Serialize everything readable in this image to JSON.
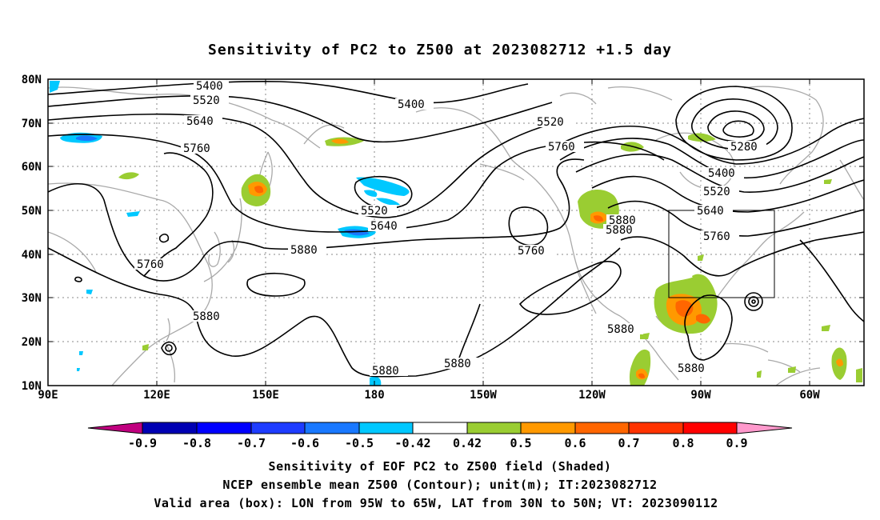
{
  "title": "Sensitivity of PC2 to Z500 at 2023082712 +1.5 day",
  "lat_labels": [
    "80N",
    "70N",
    "60N",
    "50N",
    "40N",
    "30N",
    "20N",
    "10N"
  ],
  "lon_labels": [
    "90E",
    "120E",
    "150E",
    "180",
    "150W",
    "120W",
    "90W",
    "60W"
  ],
  "contour_labels": [
    "5400",
    "5520",
    "5640",
    "5760",
    "5400",
    "5520",
    "5760",
    "5280",
    "5400",
    "5520",
    "5640",
    "5760",
    "5520",
    "5640",
    "5880",
    "5760",
    "5760",
    "5880",
    "5880",
    "5880",
    "5880",
    "5880",
    "5880",
    "5880"
  ],
  "colorbar": {
    "labels": [
      "-0.9",
      "-0.8",
      "-0.7",
      "-0.6",
      "-0.5",
      "-0.42",
      "0.42",
      "0.5",
      "0.6",
      "0.7",
      "0.8",
      "0.9"
    ],
    "colors": [
      "#c0007f",
      "#0000b3",
      "#0000ff",
      "#1e3cff",
      "#1978ff",
      "#00c8ff",
      "#ffffff",
      "#9acd32",
      "#ff9900",
      "#ff6600",
      "#ff3300",
      "#ff0000",
      "#ff99cc"
    ]
  },
  "footer": {
    "line1": "Sensitivity of EOF PC2 to Z500 field (Shaded)",
    "line2": "NCEP ensemble mean Z500 (Contour); unit(m); IT:2023082712",
    "line3": "Valid area (box): LON from 95W to 65W, LAT from 30N to 50N; VT: 2023090112"
  }
}
